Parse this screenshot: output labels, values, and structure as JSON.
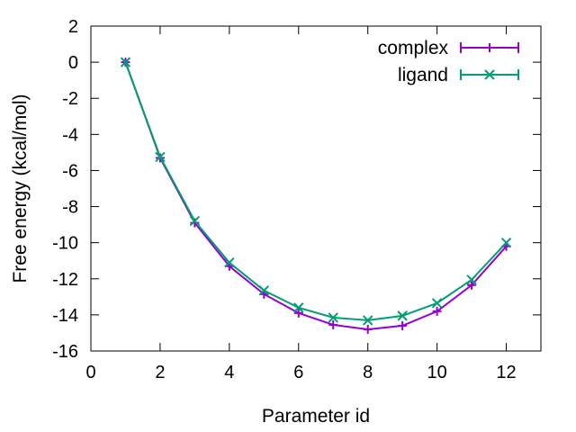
{
  "chart_data": {
    "type": "line",
    "xlabel": "Parameter id",
    "ylabel": "Free energy (kcal/mol)",
    "xlim": [
      0,
      13
    ],
    "ylim": [
      -16,
      2
    ],
    "xticks": [
      0,
      2,
      4,
      6,
      8,
      10,
      12
    ],
    "yticks": [
      2,
      0,
      -2,
      -4,
      -6,
      -8,
      -10,
      -12,
      -14,
      -16
    ],
    "legend_position": "top-right",
    "grid": false,
    "x": [
      1,
      2,
      3,
      4,
      5,
      6,
      7,
      8,
      9,
      10,
      11,
      12
    ],
    "series": [
      {
        "name": "complex",
        "color": "#9400d3",
        "marker": "plus",
        "values": [
          0.0,
          -5.3,
          -8.9,
          -11.3,
          -12.85,
          -13.9,
          -14.55,
          -14.8,
          -14.6,
          -13.8,
          -12.35,
          -10.2
        ]
      },
      {
        "name": "ligand",
        "color": "#009e73",
        "marker": "cross",
        "values": [
          0.0,
          -5.25,
          -8.8,
          -11.1,
          -12.65,
          -13.6,
          -14.15,
          -14.3,
          -14.05,
          -13.35,
          -12.05,
          -10.0
        ]
      }
    ]
  }
}
